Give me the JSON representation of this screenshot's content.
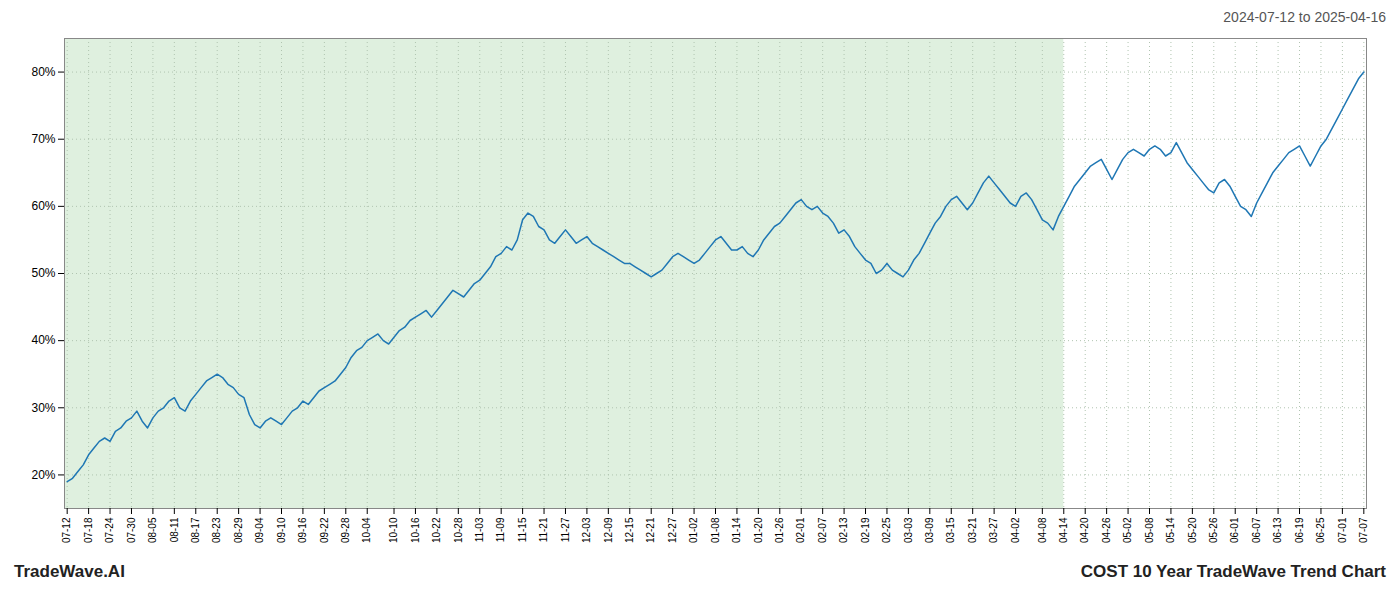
{
  "chart_data": {
    "type": "line",
    "title": "2024-07-12 to 2025-04-16",
    "annotations": [
      "TradeWave.AI",
      "COST 10 Year TradeWave Trend Chart"
    ],
    "color": "#1f77b4",
    "grid": true,
    "ylim": [
      15,
      85
    ],
    "yticks": [
      {
        "value": 20,
        "label": "20%"
      },
      {
        "value": 30,
        "label": "30%"
      },
      {
        "value": 40,
        "label": "40%"
      },
      {
        "value": 50,
        "label": "50%"
      },
      {
        "value": 60,
        "label": "60%"
      },
      {
        "value": 70,
        "label": "70%"
      },
      {
        "value": 80,
        "label": "80%"
      }
    ],
    "shaded_region": {
      "to": "04-14",
      "color": "#dff0df"
    },
    "categories": [
      "07-12",
      null,
      null,
      null,
      "07-18",
      null,
      null,
      null,
      "07-24",
      null,
      null,
      null,
      "07-30",
      null,
      null,
      null,
      "08-05",
      null,
      null,
      null,
      "08-11",
      null,
      null,
      null,
      "08-17",
      null,
      null,
      null,
      "08-23",
      null,
      null,
      null,
      "08-29",
      null,
      null,
      null,
      "09-04",
      null,
      null,
      null,
      "09-10",
      null,
      null,
      null,
      "09-16",
      null,
      null,
      null,
      "09-22",
      null,
      null,
      null,
      "09-28",
      null,
      null,
      null,
      "10-04",
      null,
      null,
      null,
      null,
      "10-10",
      null,
      null,
      null,
      "10-16",
      null,
      null,
      null,
      "10-22",
      null,
      null,
      null,
      "10-28",
      null,
      null,
      null,
      "11-03",
      null,
      null,
      null,
      "11-09",
      null,
      null,
      null,
      "11-15",
      null,
      null,
      null,
      "11-21",
      null,
      null,
      null,
      "11-27",
      null,
      null,
      null,
      "12-03",
      null,
      null,
      null,
      "12-09",
      null,
      null,
      null,
      "12-15",
      null,
      null,
      null,
      "12-21",
      null,
      null,
      null,
      "12-27",
      null,
      null,
      null,
      "01-02",
      null,
      null,
      null,
      "01-08",
      null,
      null,
      null,
      "01-14",
      null,
      null,
      null,
      "01-20",
      null,
      null,
      null,
      "01-26",
      null,
      null,
      null,
      "02-01",
      null,
      null,
      null,
      "02-07",
      null,
      null,
      null,
      "02-13",
      null,
      null,
      null,
      "02-19",
      null,
      null,
      null,
      "02-25",
      null,
      null,
      null,
      "03-03",
      null,
      null,
      null,
      "03-09",
      null,
      null,
      null,
      "03-15",
      null,
      null,
      null,
      "03-21",
      null,
      null,
      null,
      "03-27",
      null,
      null,
      null,
      "04-02",
      null,
      null,
      null,
      null,
      "04-08",
      null,
      null,
      null,
      "04-14",
      null,
      null,
      null,
      "04-20",
      null,
      null,
      null,
      "04-26",
      null,
      null,
      null,
      "05-02",
      null,
      null,
      null,
      "05-08",
      null,
      null,
      null,
      "05-14",
      null,
      null,
      null,
      "05-20",
      null,
      null,
      null,
      "05-26",
      null,
      null,
      null,
      "06-01",
      null,
      null,
      null,
      "06-07",
      null,
      null,
      null,
      "06-13",
      null,
      null,
      null,
      "06-19",
      null,
      null,
      null,
      "06-25",
      null,
      null,
      null,
      "07-01",
      null,
      null,
      null,
      "07-07"
    ],
    "values": [
      19.0,
      19.5,
      20.5,
      21.5,
      23.0,
      24.0,
      25.0,
      25.5,
      25.0,
      26.5,
      27.0,
      28.0,
      28.5,
      29.5,
      28.0,
      27.0,
      28.5,
      29.5,
      30.0,
      31.0,
      31.5,
      30.0,
      29.5,
      31.0,
      32.0,
      33.0,
      34.0,
      34.5,
      35.0,
      34.5,
      33.5,
      33.0,
      32.0,
      31.5,
      29.0,
      27.5,
      27.0,
      28.0,
      28.5,
      28.0,
      27.5,
      28.5,
      29.5,
      30.0,
      31.0,
      30.5,
      31.5,
      32.5,
      33.0,
      33.5,
      34.0,
      35.0,
      36.0,
      37.5,
      38.5,
      39.0,
      40.0,
      40.5,
      41.0,
      40.0,
      39.5,
      40.5,
      41.5,
      42.0,
      43.0,
      43.5,
      44.0,
      44.5,
      43.5,
      44.5,
      45.5,
      46.5,
      47.5,
      47.0,
      46.5,
      47.5,
      48.5,
      49.0,
      50.0,
      51.0,
      52.5,
      53.0,
      54.0,
      53.5,
      55.0,
      58.0,
      59.0,
      58.5,
      57.0,
      56.5,
      55.0,
      54.5,
      55.5,
      56.5,
      55.5,
      54.5,
      55.0,
      55.5,
      54.5,
      54.0,
      53.5,
      53.0,
      52.5,
      52.0,
      51.5,
      51.5,
      51.0,
      50.5,
      50.0,
      49.5,
      50.0,
      50.5,
      51.5,
      52.5,
      53.0,
      52.5,
      52.0,
      51.5,
      52.0,
      53.0,
      54.0,
      55.0,
      55.5,
      54.5,
      53.5,
      53.5,
      54.0,
      53.0,
      52.5,
      53.5,
      55.0,
      56.0,
      57.0,
      57.5,
      58.5,
      59.5,
      60.5,
      61.0,
      60.0,
      59.5,
      60.0,
      59.0,
      58.5,
      57.5,
      56.0,
      56.5,
      55.5,
      54.0,
      53.0,
      52.0,
      51.5,
      50.0,
      50.5,
      51.5,
      50.5,
      50.0,
      49.5,
      50.5,
      52.0,
      53.0,
      54.5,
      56.0,
      57.5,
      58.5,
      60.0,
      61.0,
      61.5,
      60.5,
      59.5,
      60.5,
      62.0,
      63.5,
      64.5,
      63.5,
      62.5,
      61.5,
      60.5,
      60.0,
      61.5,
      62.0,
      61.0,
      59.5,
      58.0,
      57.5,
      56.5,
      58.5,
      60.0,
      61.5,
      63.0,
      64.0,
      65.0,
      66.0,
      66.5,
      67.0,
      65.5,
      64.0,
      65.5,
      67.0,
      68.0,
      68.5,
      68.0,
      67.5,
      68.5,
      69.0,
      68.5,
      67.5,
      68.0,
      69.5,
      68.0,
      66.5,
      65.5,
      64.5,
      63.5,
      62.5,
      62.0,
      63.5,
      64.0,
      63.0,
      61.5,
      60.0,
      59.5,
      58.5,
      60.5,
      62.0,
      63.5,
      65.0,
      66.0,
      67.0,
      68.0,
      68.5,
      69.0,
      67.5,
      66.0,
      67.5,
      69.0,
      70.0,
      71.5,
      73.0,
      74.5,
      76.0,
      77.5,
      79.0,
      80.0
    ]
  }
}
